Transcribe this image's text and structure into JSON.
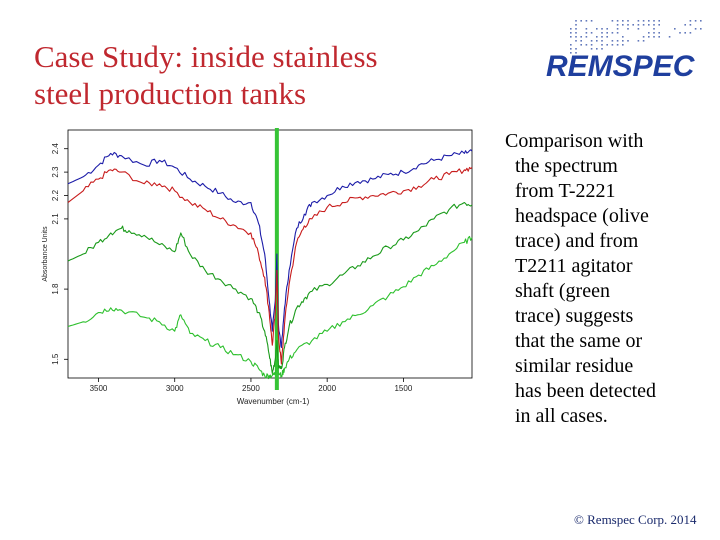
{
  "slide": {
    "title_lines": [
      "Case Study: inside stainless",
      "steel production tanks"
    ],
    "logo_text": "REMSPEC",
    "body_lines": [
      "Comparison with",
      "the spectrum",
      "from T-2221",
      "headspace (olive",
      "trace) and from",
      "T2211 agitator",
      "shaft (green",
      "trace) suggests",
      "that the same or",
      "similar residue",
      "has been detected",
      "in all cases."
    ],
    "footer": "© Remspec Corp. 2014"
  },
  "colors": {
    "title": "#c0282f",
    "logo": "#1f3f9e",
    "footer": "#1a2a6c",
    "highlight_band": "#36c436"
  },
  "chart_data": {
    "type": "line",
    "xlabel": "Wavenumber (cm-1)",
    "ylabel": "Absorbance Units",
    "x_reversed": true,
    "xlim": [
      3700,
      1050
    ],
    "ylim": [
      1.42,
      2.48
    ],
    "xticks": [
      {
        "value": 3500,
        "label": "3500"
      },
      {
        "value": 3000,
        "label": "3000"
      },
      {
        "value": 2500,
        "label": "2500"
      },
      {
        "value": 2000,
        "label": "2000"
      },
      {
        "value": 1500,
        "label": "1500"
      }
    ],
    "yticks": [
      {
        "value": 1.5,
        "label": "1.5"
      },
      {
        "value": 1.8,
        "label": "1.8"
      },
      {
        "value": 2.1,
        "label": "2.1"
      },
      {
        "value": 2.2,
        "label": "2.2"
      },
      {
        "value": 2.3,
        "label": "2.3"
      },
      {
        "value": 2.4,
        "label": "2.4"
      }
    ],
    "highlight_x": 2330,
    "series": [
      {
        "color": "#1c1ca8",
        "x": [
          3700,
          3600,
          3500,
          3420,
          3350,
          3200,
          3100,
          3000,
          2900,
          2800,
          2700,
          2600,
          2500,
          2450,
          2410,
          2380,
          2360,
          2340,
          2330,
          2320,
          2300,
          2280,
          2250,
          2200,
          2150,
          2100,
          2000,
          1900,
          1800,
          1700,
          1600,
          1500,
          1400,
          1300,
          1200,
          1100,
          1050
        ],
        "y": [
          2.25,
          2.28,
          2.33,
          2.38,
          2.37,
          2.33,
          2.35,
          2.32,
          2.27,
          2.24,
          2.21,
          2.17,
          2.17,
          2.08,
          1.95,
          1.75,
          1.62,
          1.75,
          1.95,
          1.65,
          1.55,
          1.72,
          1.88,
          2.06,
          2.12,
          2.17,
          2.2,
          2.24,
          2.26,
          2.27,
          2.29,
          2.3,
          2.33,
          2.35,
          2.37,
          2.38,
          2.39
        ]
      },
      {
        "color": "#c81c1c",
        "x": [
          3700,
          3600,
          3500,
          3420,
          3350,
          3200,
          3100,
          3000,
          2900,
          2800,
          2700,
          2600,
          2500,
          2450,
          2410,
          2380,
          2360,
          2340,
          2330,
          2320,
          2300,
          2280,
          2250,
          2200,
          2150,
          2100,
          2000,
          1900,
          1800,
          1700,
          1600,
          1500,
          1400,
          1300,
          1200,
          1100,
          1050
        ],
        "y": [
          2.17,
          2.22,
          2.27,
          2.31,
          2.3,
          2.25,
          2.25,
          2.22,
          2.17,
          2.14,
          2.1,
          2.07,
          2.04,
          1.95,
          1.85,
          1.7,
          1.56,
          1.7,
          1.88,
          1.6,
          1.48,
          1.65,
          1.82,
          2.0,
          2.07,
          2.1,
          2.15,
          2.17,
          2.19,
          2.2,
          2.21,
          2.22,
          2.24,
          2.27,
          2.29,
          2.31,
          2.32
        ]
      },
      {
        "color": "#1a9a1a",
        "x": [
          3700,
          3600,
          3500,
          3420,
          3350,
          3300,
          3200,
          3100,
          3000,
          2960,
          2900,
          2800,
          2700,
          2600,
          2500,
          2450,
          2410,
          2380,
          2360,
          2340,
          2330,
          2320,
          2300,
          2280,
          2250,
          2200,
          2150,
          2100,
          2000,
          1900,
          1800,
          1700,
          1600,
          1500,
          1400,
          1300,
          1200,
          1100,
          1050
        ],
        "y": [
          1.92,
          1.95,
          2.0,
          2.04,
          2.06,
          2.05,
          2.03,
          1.99,
          1.96,
          2.04,
          1.95,
          1.88,
          1.84,
          1.8,
          1.76,
          1.7,
          1.62,
          1.52,
          1.44,
          1.5,
          1.58,
          1.47,
          1.46,
          1.55,
          1.64,
          1.72,
          1.76,
          1.79,
          1.82,
          1.86,
          1.9,
          1.94,
          1.98,
          2.01,
          2.05,
          2.1,
          2.14,
          2.17,
          2.16
        ]
      },
      {
        "color": "#2ec02e",
        "x": [
          3700,
          3600,
          3500,
          3420,
          3350,
          3200,
          3100,
          3000,
          2960,
          2900,
          2800,
          2700,
          2600,
          2500,
          2450,
          2410,
          2380,
          2360,
          2340,
          2330,
          2320,
          2300,
          2280,
          2250,
          2200,
          2100,
          2000,
          1900,
          1800,
          1700,
          1600,
          1500,
          1400,
          1300,
          1200,
          1100,
          1050
        ],
        "y": [
          1.64,
          1.66,
          1.7,
          1.72,
          1.71,
          1.68,
          1.66,
          1.62,
          1.69,
          1.61,
          1.58,
          1.55,
          1.52,
          1.49,
          1.46,
          1.43,
          1.43,
          1.43,
          1.44,
          1.5,
          1.44,
          1.43,
          1.46,
          1.5,
          1.54,
          1.58,
          1.62,
          1.66,
          1.69,
          1.73,
          1.77,
          1.81,
          1.86,
          1.9,
          1.95,
          2.0,
          2.02
        ]
      }
    ]
  }
}
